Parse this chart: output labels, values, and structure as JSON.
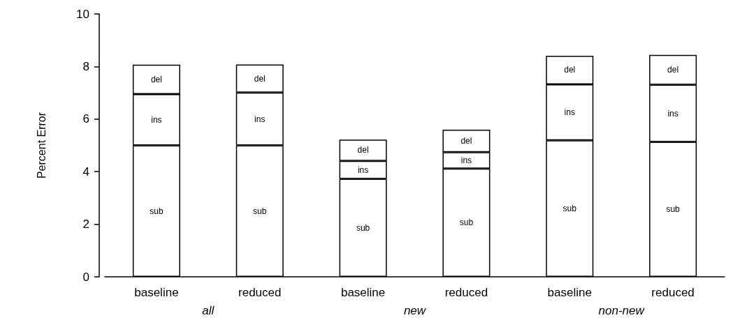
{
  "chart_data": {
    "type": "bar",
    "stacked": true,
    "ylabel": "Percent Error",
    "categories": [
      "baseline",
      "reduced",
      "baseline",
      "reduced",
      "baseline",
      "reduced"
    ],
    "annotations": [
      "all",
      "new",
      "non-new"
    ],
    "ylim": [
      0,
      10
    ],
    "yticks": [
      0,
      2,
      4,
      6,
      8,
      10
    ],
    "grid": false,
    "legend": false,
    "series": [
      {
        "name": "sub",
        "color": "#ffffff",
        "values": [
          5.0,
          5.0,
          3.73,
          4.12,
          5.19,
          5.13
        ]
      },
      {
        "name": "ins",
        "color": "#ffffff",
        "values": [
          1.95,
          2.01,
          0.68,
          0.62,
          2.13,
          2.18
        ]
      },
      {
        "name": "del",
        "color": "#ffffff",
        "values": [
          1.12,
          1.07,
          0.81,
          0.86,
          1.09,
          1.13
        ]
      }
    ]
  }
}
